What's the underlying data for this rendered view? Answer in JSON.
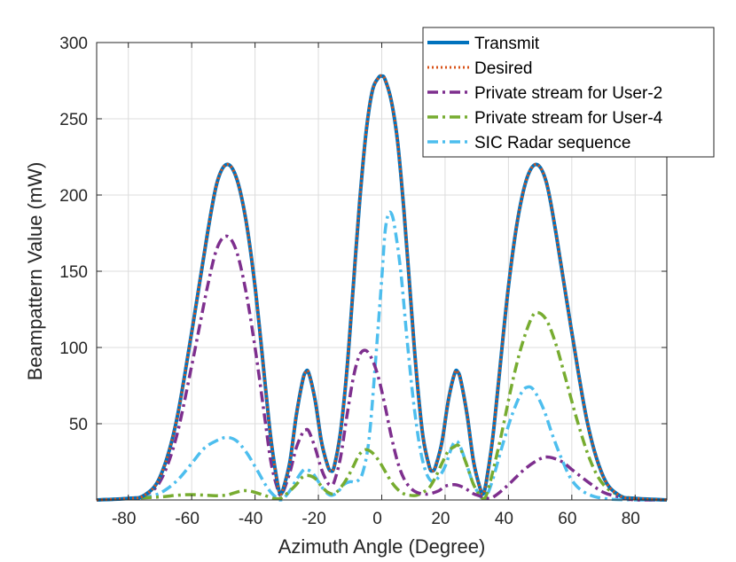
{
  "chart_data": {
    "type": "line",
    "title": "",
    "xlabel": "Azimuth Angle (Degree)",
    "ylabel": "Beampattern Value (mW)",
    "xlim": [
      -90,
      90
    ],
    "ylim": [
      0,
      300
    ],
    "xticks": [
      -80,
      -60,
      -40,
      -20,
      0,
      20,
      40,
      60,
      80
    ],
    "yticks": [
      50,
      100,
      150,
      200,
      250,
      300
    ],
    "legend_position": "top-right",
    "series": [
      {
        "name": "Transmit",
        "color": "#0072BD",
        "style": "solid",
        "points": [
          [
            -90,
            0
          ],
          [
            -80,
            1
          ],
          [
            -75,
            3
          ],
          [
            -70,
            15
          ],
          [
            -65,
            50
          ],
          [
            -60,
            110
          ],
          [
            -55,
            175
          ],
          [
            -52,
            208
          ],
          [
            -49,
            220
          ],
          [
            -46,
            212
          ],
          [
            -43,
            185
          ],
          [
            -40,
            140
          ],
          [
            -37,
            80
          ],
          [
            -35,
            40
          ],
          [
            -33,
            12
          ],
          [
            -32,
            4
          ],
          [
            -31,
            8
          ],
          [
            -29,
            25
          ],
          [
            -27,
            55
          ],
          [
            -25,
            78
          ],
          [
            -24,
            84
          ],
          [
            -23,
            83
          ],
          [
            -21,
            65
          ],
          [
            -19,
            38
          ],
          [
            -17,
            22
          ],
          [
            -16,
            19
          ],
          [
            -15,
            22
          ],
          [
            -13,
            45
          ],
          [
            -11,
            85
          ],
          [
            -9,
            140
          ],
          [
            -7,
            195
          ],
          [
            -5,
            240
          ],
          [
            -3,
            268
          ],
          [
            -1,
            277
          ],
          [
            0,
            278
          ],
          [
            1,
            276
          ],
          [
            3,
            262
          ],
          [
            5,
            235
          ],
          [
            7,
            190
          ],
          [
            9,
            135
          ],
          [
            11,
            82
          ],
          [
            13,
            42
          ],
          [
            15,
            22
          ],
          [
            16,
            19
          ],
          [
            17,
            22
          ],
          [
            19,
            38
          ],
          [
            21,
            65
          ],
          [
            23,
            83
          ],
          [
            24,
            84
          ],
          [
            25,
            78
          ],
          [
            27,
            55
          ],
          [
            29,
            25
          ],
          [
            31,
            8
          ],
          [
            32,
            4
          ],
          [
            33,
            12
          ],
          [
            35,
            40
          ],
          [
            37,
            80
          ],
          [
            40,
            140
          ],
          [
            43,
            185
          ],
          [
            46,
            212
          ],
          [
            49,
            220
          ],
          [
            52,
            208
          ],
          [
            55,
            175
          ],
          [
            60,
            110
          ],
          [
            65,
            50
          ],
          [
            70,
            15
          ],
          [
            75,
            3
          ],
          [
            80,
            1
          ],
          [
            90,
            0
          ]
        ]
      },
      {
        "name": "Desired",
        "color": "#D95319",
        "style": "dotted",
        "points": [
          [
            -90,
            0
          ],
          [
            -80,
            1
          ],
          [
            -75,
            3
          ],
          [
            -70,
            15
          ],
          [
            -65,
            50
          ],
          [
            -60,
            110
          ],
          [
            -55,
            175
          ],
          [
            -52,
            208
          ],
          [
            -49,
            220
          ],
          [
            -46,
            212
          ],
          [
            -43,
            185
          ],
          [
            -40,
            140
          ],
          [
            -37,
            80
          ],
          [
            -35,
            40
          ],
          [
            -33,
            12
          ],
          [
            -32,
            4
          ],
          [
            -31,
            8
          ],
          [
            -29,
            25
          ],
          [
            -27,
            55
          ],
          [
            -25,
            78
          ],
          [
            -24,
            84
          ],
          [
            -23,
            83
          ],
          [
            -21,
            65
          ],
          [
            -19,
            38
          ],
          [
            -17,
            22
          ],
          [
            -16,
            19
          ],
          [
            -15,
            22
          ],
          [
            -13,
            45
          ],
          [
            -11,
            85
          ],
          [
            -9,
            140
          ],
          [
            -7,
            195
          ],
          [
            -5,
            240
          ],
          [
            -3,
            268
          ],
          [
            -1,
            277
          ],
          [
            0,
            278
          ],
          [
            1,
            276
          ],
          [
            3,
            262
          ],
          [
            5,
            235
          ],
          [
            7,
            190
          ],
          [
            9,
            135
          ],
          [
            11,
            82
          ],
          [
            13,
            42
          ],
          [
            15,
            22
          ],
          [
            16,
            19
          ],
          [
            17,
            22
          ],
          [
            19,
            38
          ],
          [
            21,
            65
          ],
          [
            23,
            83
          ],
          [
            24,
            84
          ],
          [
            25,
            78
          ],
          [
            27,
            55
          ],
          [
            29,
            25
          ],
          [
            31,
            8
          ],
          [
            32,
            4
          ],
          [
            33,
            12
          ],
          [
            35,
            40
          ],
          [
            37,
            80
          ],
          [
            40,
            140
          ],
          [
            43,
            185
          ],
          [
            46,
            212
          ],
          [
            49,
            220
          ],
          [
            52,
            208
          ],
          [
            55,
            175
          ],
          [
            60,
            110
          ],
          [
            65,
            50
          ],
          [
            70,
            15
          ],
          [
            75,
            3
          ],
          [
            80,
            1
          ],
          [
            90,
            0
          ]
        ]
      },
      {
        "name": "Private stream for User-2",
        "color": "#7E2F8E",
        "style": "dashdot",
        "points": [
          [
            -90,
            0
          ],
          [
            -80,
            1
          ],
          [
            -75,
            3
          ],
          [
            -70,
            12
          ],
          [
            -65,
            40
          ],
          [
            -60,
            88
          ],
          [
            -55,
            140
          ],
          [
            -52,
            165
          ],
          [
            -49,
            173
          ],
          [
            -46,
            164
          ],
          [
            -43,
            138
          ],
          [
            -40,
            100
          ],
          [
            -37,
            55
          ],
          [
            -35,
            25
          ],
          [
            -33,
            8
          ],
          [
            -32,
            3
          ],
          [
            -31,
            6
          ],
          [
            -29,
            18
          ],
          [
            -27,
            34
          ],
          [
            -25,
            44
          ],
          [
            -24,
            46
          ],
          [
            -23,
            45
          ],
          [
            -21,
            34
          ],
          [
            -19,
            20
          ],
          [
            -17,
            11
          ],
          [
            -16,
            10
          ],
          [
            -15,
            12
          ],
          [
            -13,
            28
          ],
          [
            -11,
            55
          ],
          [
            -9,
            80
          ],
          [
            -7,
            95
          ],
          [
            -5,
            98
          ],
          [
            -3,
            92
          ],
          [
            -1,
            80
          ],
          [
            1,
            62
          ],
          [
            3,
            42
          ],
          [
            5,
            25
          ],
          [
            7,
            14
          ],
          [
            9,
            8
          ],
          [
            11,
            5
          ],
          [
            13,
            4
          ],
          [
            15,
            4
          ],
          [
            18,
            6
          ],
          [
            20,
            9
          ],
          [
            23,
            10
          ],
          [
            26,
            8
          ],
          [
            29,
            4
          ],
          [
            32,
            2
          ],
          [
            34,
            1
          ],
          [
            36,
            3
          ],
          [
            40,
            10
          ],
          [
            45,
            20
          ],
          [
            50,
            27
          ],
          [
            53,
            28
          ],
          [
            57,
            25
          ],
          [
            60,
            20
          ],
          [
            65,
            12
          ],
          [
            70,
            5
          ],
          [
            75,
            2
          ],
          [
            80,
            0
          ],
          [
            90,
            0
          ]
        ]
      },
      {
        "name": "Private stream for User-4",
        "color": "#77AC30",
        "style": "dashdot",
        "points": [
          [
            -90,
            0
          ],
          [
            -80,
            1
          ],
          [
            -70,
            2
          ],
          [
            -65,
            3
          ],
          [
            -60,
            3.5
          ],
          [
            -55,
            3
          ],
          [
            -52,
            2.8
          ],
          [
            -49,
            3.2
          ],
          [
            -46,
            5
          ],
          [
            -44,
            6
          ],
          [
            -42,
            6
          ],
          [
            -40,
            5
          ],
          [
            -37,
            3
          ],
          [
            -34,
            1
          ],
          [
            -32,
            1
          ],
          [
            -30,
            4
          ],
          [
            -27,
            10
          ],
          [
            -25,
            15
          ],
          [
            -23,
            16
          ],
          [
            -21,
            14
          ],
          [
            -19,
            9
          ],
          [
            -17,
            5
          ],
          [
            -15,
            4
          ],
          [
            -13,
            8
          ],
          [
            -11,
            14
          ],
          [
            -9,
            22
          ],
          [
            -7,
            30
          ],
          [
            -5,
            33
          ],
          [
            -3,
            31
          ],
          [
            -1,
            26
          ],
          [
            1,
            19
          ],
          [
            3,
            12
          ],
          [
            5,
            7
          ],
          [
            7,
            4
          ],
          [
            9,
            3
          ],
          [
            11,
            3
          ],
          [
            13,
            5
          ],
          [
            15,
            8
          ],
          [
            17,
            15
          ],
          [
            19,
            24
          ],
          [
            21,
            32
          ],
          [
            23,
            35
          ],
          [
            24,
            36
          ],
          [
            25,
            33
          ],
          [
            27,
            22
          ],
          [
            29,
            10
          ],
          [
            31,
            3
          ],
          [
            32,
            1
          ],
          [
            33,
            3
          ],
          [
            35,
            18
          ],
          [
            38,
            45
          ],
          [
            41,
            75
          ],
          [
            44,
            100
          ],
          [
            47,
            118
          ],
          [
            49,
            123
          ],
          [
            52,
            118
          ],
          [
            55,
            102
          ],
          [
            58,
            80
          ],
          [
            62,
            50
          ],
          [
            66,
            25
          ],
          [
            70,
            10
          ],
          [
            75,
            3
          ],
          [
            80,
            1
          ],
          [
            90,
            0
          ]
        ]
      },
      {
        "name": "SIC Radar sequence",
        "color": "#4DBEEE",
        "style": "dashdot",
        "points": [
          [
            -90,
            0
          ],
          [
            -80,
            1
          ],
          [
            -72,
            3
          ],
          [
            -68,
            7
          ],
          [
            -64,
            14
          ],
          [
            -60,
            24
          ],
          [
            -56,
            34
          ],
          [
            -52,
            39
          ],
          [
            -49,
            41
          ],
          [
            -46,
            39
          ],
          [
            -43,
            32
          ],
          [
            -40,
            22
          ],
          [
            -37,
            11
          ],
          [
            -35,
            5
          ],
          [
            -33,
            1
          ],
          [
            -32,
            0
          ],
          [
            -31,
            1
          ],
          [
            -29,
            6
          ],
          [
            -27,
            13
          ],
          [
            -25,
            19
          ],
          [
            -24,
            20
          ],
          [
            -22,
            18
          ],
          [
            -20,
            12
          ],
          [
            -18,
            6
          ],
          [
            -16,
            3
          ],
          [
            -14,
            5
          ],
          [
            -12,
            10
          ],
          [
            -10,
            12
          ],
          [
            -8,
            12
          ],
          [
            -6,
            18
          ],
          [
            -4,
            40
          ],
          [
            -2,
            90
          ],
          [
            0,
            145
          ],
          [
            1,
            175
          ],
          [
            2,
            187
          ],
          [
            3,
            188
          ],
          [
            4,
            180
          ],
          [
            6,
            150
          ],
          [
            8,
            105
          ],
          [
            10,
            65
          ],
          [
            12,
            35
          ],
          [
            14,
            18
          ],
          [
            16,
            12
          ],
          [
            18,
            15
          ],
          [
            20,
            22
          ],
          [
            22,
            34
          ],
          [
            23,
            38
          ],
          [
            24,
            38
          ],
          [
            25,
            34
          ],
          [
            27,
            22
          ],
          [
            29,
            10
          ],
          [
            31,
            3
          ],
          [
            32,
            0
          ],
          [
            33,
            2
          ],
          [
            35,
            13
          ],
          [
            38,
            35
          ],
          [
            41,
            55
          ],
          [
            44,
            70
          ],
          [
            46,
            74
          ],
          [
            48,
            72
          ],
          [
            51,
            60
          ],
          [
            54,
            42
          ],
          [
            57,
            26
          ],
          [
            60,
            13
          ],
          [
            64,
            5
          ],
          [
            70,
            1
          ],
          [
            80,
            0
          ],
          [
            90,
            0
          ]
        ]
      }
    ]
  }
}
